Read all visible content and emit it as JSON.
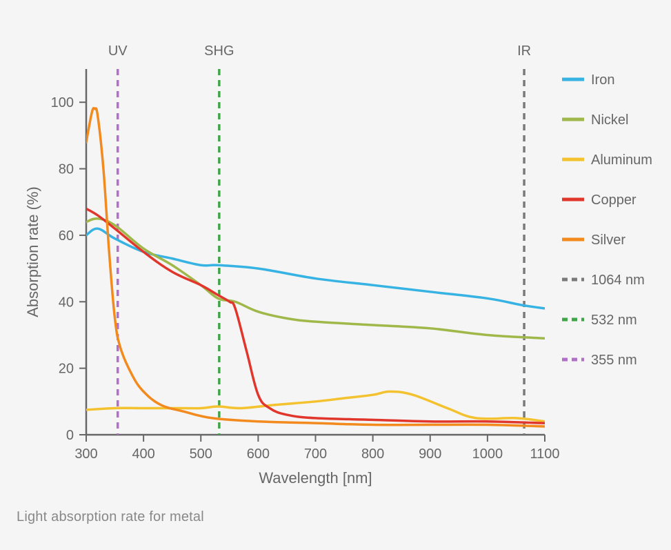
{
  "caption": "Light absorption rate for metal",
  "chart": {
    "type": "line",
    "background_color": "#f5f5f5",
    "xlabel": "Wavelength [nm]",
    "ylabel": "Absorption rate (%)",
    "label_fontsize": 22,
    "tick_fontsize": 20,
    "axis_color": "#666666",
    "text_color": "#666666",
    "xlim": [
      300,
      1100
    ],
    "ylim": [
      0,
      110
    ],
    "xticks": [
      300,
      400,
      500,
      600,
      700,
      800,
      900,
      1000,
      1100
    ],
    "yticks": [
      0,
      20,
      40,
      60,
      80,
      100
    ],
    "line_width": 3.5,
    "vlines": [
      {
        "x": 355,
        "label": "UV",
        "color": "#b070c7",
        "dash": "9,7"
      },
      {
        "x": 532,
        "label": "SHG",
        "color": "#3fa648",
        "dash": "9,7"
      },
      {
        "x": 1064,
        "label": "IR",
        "color": "#7a7a7a",
        "dash": "9,7"
      }
    ],
    "series": [
      {
        "name": "Iron",
        "color": "#36b3e3",
        "points": [
          [
            300,
            60
          ],
          [
            320,
            62
          ],
          [
            350,
            59
          ],
          [
            400,
            55
          ],
          [
            450,
            53
          ],
          [
            500,
            51
          ],
          [
            530,
            51
          ],
          [
            600,
            50
          ],
          [
            700,
            47
          ],
          [
            800,
            45
          ],
          [
            900,
            43
          ],
          [
            1000,
            41
          ],
          [
            1060,
            39
          ],
          [
            1100,
            38
          ]
        ]
      },
      {
        "name": "Nickel",
        "color": "#a0b84a",
        "points": [
          [
            300,
            64
          ],
          [
            320,
            65
          ],
          [
            350,
            63
          ],
          [
            400,
            56
          ],
          [
            450,
            51
          ],
          [
            500,
            45
          ],
          [
            530,
            41
          ],
          [
            560,
            40
          ],
          [
            600,
            37
          ],
          [
            650,
            35
          ],
          [
            700,
            34
          ],
          [
            800,
            33
          ],
          [
            900,
            32
          ],
          [
            1000,
            30
          ],
          [
            1100,
            29
          ]
        ]
      },
      {
        "name": "Aluminum",
        "color": "#f3c22e",
        "points": [
          [
            300,
            7.5
          ],
          [
            350,
            8
          ],
          [
            400,
            8
          ],
          [
            450,
            8
          ],
          [
            500,
            8
          ],
          [
            530,
            8.5
          ],
          [
            570,
            8
          ],
          [
            630,
            9
          ],
          [
            700,
            10
          ],
          [
            750,
            11
          ],
          [
            800,
            12
          ],
          [
            830,
            13
          ],
          [
            870,
            12
          ],
          [
            930,
            8
          ],
          [
            980,
            5
          ],
          [
            1050,
            5
          ],
          [
            1100,
            4
          ]
        ]
      },
      {
        "name": "Copper",
        "color": "#e1362c",
        "points": [
          [
            300,
            68
          ],
          [
            320,
            66
          ],
          [
            350,
            62
          ],
          [
            400,
            55
          ],
          [
            450,
            49
          ],
          [
            500,
            45
          ],
          [
            530,
            42
          ],
          [
            550,
            40
          ],
          [
            560,
            38
          ],
          [
            580,
            25
          ],
          [
            600,
            12
          ],
          [
            620,
            8
          ],
          [
            650,
            6
          ],
          [
            700,
            5
          ],
          [
            800,
            4.5
          ],
          [
            900,
            4
          ],
          [
            1000,
            4
          ],
          [
            1100,
            3.5
          ]
        ]
      },
      {
        "name": "Silver",
        "color": "#f28a1e",
        "points": [
          [
            300,
            88
          ],
          [
            310,
            97
          ],
          [
            315,
            98
          ],
          [
            320,
            96
          ],
          [
            330,
            80
          ],
          [
            340,
            55
          ],
          [
            350,
            35
          ],
          [
            360,
            26
          ],
          [
            380,
            18
          ],
          [
            400,
            13
          ],
          [
            430,
            9
          ],
          [
            470,
            7
          ],
          [
            520,
            5
          ],
          [
            600,
            4
          ],
          [
            700,
            3.5
          ],
          [
            800,
            3
          ],
          [
            900,
            3
          ],
          [
            1000,
            3
          ],
          [
            1100,
            2.5
          ]
        ]
      }
    ],
    "legend": {
      "fontsize": 20,
      "items": [
        {
          "type": "line",
          "label": "Iron",
          "color": "#36b3e3"
        },
        {
          "type": "line",
          "label": "Nickel",
          "color": "#a0b84a"
        },
        {
          "type": "line",
          "label": "Aluminum",
          "color": "#f3c22e"
        },
        {
          "type": "line",
          "label": "Copper",
          "color": "#e1362c"
        },
        {
          "type": "line",
          "label": "Silver",
          "color": "#f28a1e"
        },
        {
          "type": "dash",
          "label": "1064 nm",
          "color": "#7a7a7a"
        },
        {
          "type": "dash",
          "label": "532 nm",
          "color": "#3fa648"
        },
        {
          "type": "dash",
          "label": "355 nm",
          "color": "#b070c7"
        }
      ]
    }
  }
}
